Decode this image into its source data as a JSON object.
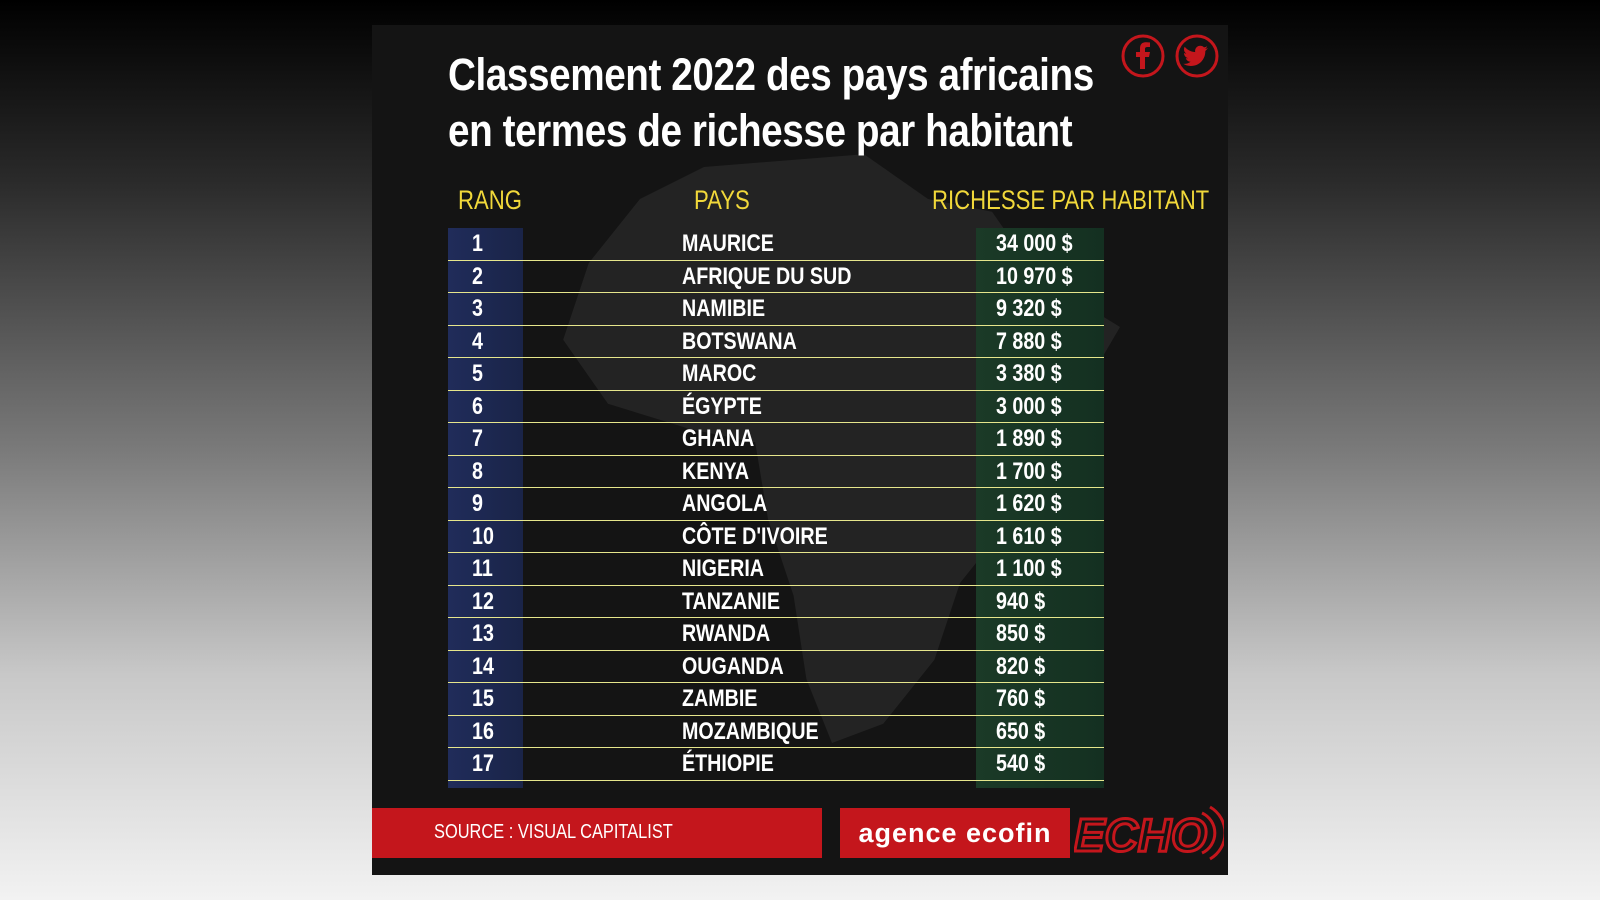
{
  "title": {
    "line1": "Classement 2022 des pays africains",
    "line2": "en termes de richesse par habitant"
  },
  "headers": {
    "rang": "RANG",
    "pays": "PAYS",
    "richesse": "RICHESSE PAR HABITANT"
  },
  "rows": [
    {
      "rank": "1",
      "country": "MAURICE",
      "value": "34 000 $"
    },
    {
      "rank": "2",
      "country": "AFRIQUE DU SUD",
      "value": "10 970 $"
    },
    {
      "rank": "3",
      "country": "NAMIBIE",
      "value": "9 320 $"
    },
    {
      "rank": "4",
      "country": "BOTSWANA",
      "value": "7 880 $"
    },
    {
      "rank": "5",
      "country": "MAROC",
      "value": "3 380 $"
    },
    {
      "rank": "6",
      "country": "ÉGYPTE",
      "value": "3 000 $"
    },
    {
      "rank": "7",
      "country": "GHANA",
      "value": "1 890 $"
    },
    {
      "rank": "8",
      "country": "KENYA",
      "value": "1 700 $"
    },
    {
      "rank": "9",
      "country": "ANGOLA",
      "value": "1 620 $"
    },
    {
      "rank": "10",
      "country": "CÔTE D'IVOIRE",
      "value": "1 610 $"
    },
    {
      "rank": "11",
      "country": "NIGERIA",
      "value": "1 100 $"
    },
    {
      "rank": "12",
      "country": "TANZANIE",
      "value": "940 $"
    },
    {
      "rank": "13",
      "country": "RWANDA",
      "value": "850 $"
    },
    {
      "rank": "14",
      "country": "OUGANDA",
      "value": "820 $"
    },
    {
      "rank": "15",
      "country": "ZAMBIE",
      "value": "760 $"
    },
    {
      "rank": "16",
      "country": "MOZAMBIQUE",
      "value": "650 $"
    },
    {
      "rank": "17",
      "country": "ÉTHIOPIE",
      "value": "540 $"
    }
  ],
  "footer": {
    "source": "SOURCE : VISUAL CAPITALIST",
    "brand": "agence ecofin",
    "logo": "ECHO"
  },
  "icons": {
    "facebook": "facebook-icon",
    "twitter": "twitter-icon"
  },
  "colors": {
    "header_yellow": "#f1d83a",
    "brand_red": "#c4161c",
    "rank_blue": "#202c5a",
    "value_green": "#1b3a27"
  }
}
